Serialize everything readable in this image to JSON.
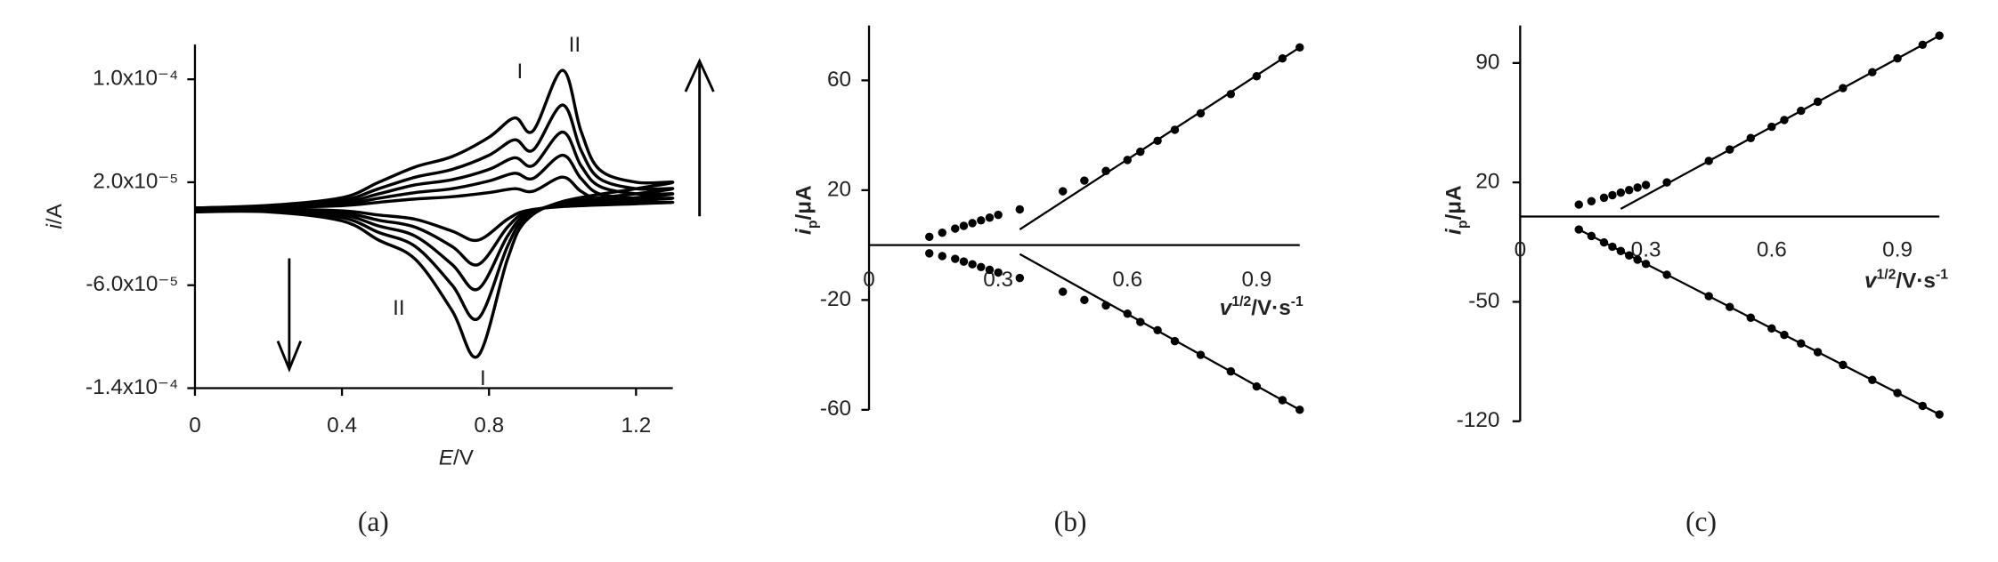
{
  "chart_data": [
    {
      "type": "line",
      "label": "(a)",
      "color": "#000000",
      "x_label": [
        "E",
        "/V"
      ],
      "y_label": [
        "i",
        "/A"
      ],
      "xlim": [
        0,
        1.3
      ],
      "ylim": [
        -0.00014,
        0.000127
      ],
      "xticks": [
        0,
        0.4,
        0.8,
        1.2
      ],
      "yticks": [
        {
          "value": 0.0001,
          "label": "1.0x10⁻⁴"
        },
        {
          "value": 2e-05,
          "label": "2.0x10⁻⁵"
        },
        {
          "value": -6e-05,
          "label": "-6.0x10⁻⁵"
        },
        {
          "value": -0.00014,
          "label": "-1.4x10⁻⁴"
        }
      ],
      "annotations": [
        "I",
        "II",
        "II",
        "I"
      ],
      "x": [
        0,
        0.2,
        0.4,
        0.5,
        0.6,
        0.7,
        0.8,
        0.87,
        0.92,
        1.0,
        1.05,
        1.1,
        1.2,
        1.3,
        1.2,
        1.0,
        0.9,
        0.85,
        0.77,
        0.7,
        0.6,
        0.5,
        0.4,
        0.2,
        0
      ],
      "series": [
        {
          "values": [
            0,
            2e-06,
            8e-06,
            2e-05,
            3.2e-05,
            4e-05,
            5.5e-05,
            7e-05,
            6e-05,
            0.000107,
            6e-05,
            3e-05,
            2e-05,
            2e-05,
            1.5e-05,
            5e-06,
            -1e-05,
            -4e-05,
            -0.000115,
            -8e-05,
            -4e-05,
            -2.5e-05,
            -1e-05,
            -3e-06,
            -3e-06
          ]
        },
        {
          "values": [
            0,
            1.5e-06,
            6e-06,
            1.5e-05,
            2.4e-05,
            3e-05,
            4.1e-05,
            5.3e-05,
            4.5e-05,
            8e-05,
            4.5e-05,
            2.3e-05,
            1.5e-05,
            1.5e-05,
            1.1e-05,
            4e-06,
            -7.5e-06,
            -3e-05,
            -8.6e-05,
            -6e-05,
            -3e-05,
            -1.9e-05,
            -7.5e-06,
            -2e-06,
            -2e-06
          ]
        },
        {
          "values": [
            0,
            1e-06,
            4.4e-06,
            1.1e-05,
            1.8e-05,
            2.2e-05,
            3e-05,
            3.9e-05,
            3.3e-05,
            5.9e-05,
            3.3e-05,
            1.7e-05,
            1.1e-05,
            1.1e-05,
            8e-06,
            3e-06,
            -5.5e-06,
            -2.2e-05,
            -6.3e-05,
            -4.4e-05,
            -2.2e-05,
            -1.4e-05,
            -5.5e-06,
            -2e-06,
            -2e-06
          ]
        },
        {
          "values": [
            0,
            8e-07,
            3e-06,
            7.6e-06,
            1.2e-05,
            1.5e-05,
            2.1e-05,
            2.7e-05,
            2.3e-05,
            4.1e-05,
            2.3e-05,
            1.1e-05,
            7.6e-06,
            7.6e-06,
            5.7e-06,
            1.9e-06,
            -3.8e-06,
            -1.5e-05,
            -4.4e-05,
            -3e-05,
            -1.5e-05,
            -9.5e-06,
            -3.8e-06,
            -1e-06,
            -1e-06
          ]
        },
        {
          "values": [
            0,
            4e-07,
            1.8e-06,
            4.4e-06,
            7e-06,
            8.8e-06,
            1.2e-05,
            1.5e-05,
            1.3e-05,
            2.4e-05,
            1.3e-05,
            6.6e-06,
            4.4e-06,
            4.4e-06,
            3.3e-06,
            1.1e-06,
            -2.2e-06,
            -8.8e-06,
            -2.5e-05,
            -1.8e-05,
            -8.8e-06,
            -5.5e-06,
            -2.2e-06,
            -7e-07,
            -7e-07
          ]
        }
      ]
    },
    {
      "type": "scatter",
      "label": "(b)",
      "color": "#000000",
      "x_label": [
        "v",
        "1/2",
        "/V·s",
        "-1"
      ],
      "y_label": [
        "i",
        "p",
        "/μA"
      ],
      "xlim": [
        0,
        1.0
      ],
      "ylim": [
        -60,
        80
      ],
      "xticks": [
        0,
        0.3,
        0.6,
        0.9
      ],
      "yticks": [
        60,
        20,
        -20,
        -60
      ],
      "x": [
        0.14,
        0.17,
        0.2,
        0.22,
        0.24,
        0.26,
        0.28,
        0.3,
        0.35,
        0.45,
        0.5,
        0.55,
        0.6,
        0.63,
        0.67,
        0.71,
        0.77,
        0.84,
        0.9,
        0.96,
        1.0
      ],
      "series": [
        {
          "values": [
            3,
            4.5,
            6,
            7,
            8,
            9,
            10,
            11,
            13,
            19.6,
            23.5,
            27,
            31,
            34,
            38,
            42,
            48,
            55,
            61.5,
            68,
            72
          ]
        },
        {
          "values": [
            -3,
            -4,
            -5,
            -6,
            -7,
            -8,
            -9,
            -10,
            -12,
            -17,
            -20,
            -22,
            -25,
            -28,
            -31,
            -35,
            -40,
            -46,
            -51.5,
            -56.5,
            -60
          ]
        }
      ],
      "fits": [
        {
          "x": [
            0.35,
            1.0
          ],
          "values": [
            5.7,
            72
          ]
        },
        {
          "x": [
            0.35,
            1.0
          ],
          "values": [
            -3.3,
            -60
          ]
        }
      ]
    },
    {
      "type": "scatter",
      "label": "(c)",
      "color": "#000000",
      "x_label": [
        "v",
        "1/2",
        "/V·s",
        "-1"
      ],
      "y_label": [
        "i",
        "p",
        "/μA"
      ],
      "xlim": [
        0,
        1.0
      ],
      "ylim": [
        -120,
        112
      ],
      "xticks": [
        0,
        0.3,
        0.6,
        0.9
      ],
      "yticks": [
        90,
        20,
        -50,
        -120
      ],
      "x": [
        0.14,
        0.17,
        0.2,
        0.22,
        0.24,
        0.26,
        0.28,
        0.3,
        0.35,
        0.45,
        0.5,
        0.55,
        0.6,
        0.63,
        0.67,
        0.71,
        0.77,
        0.84,
        0.9,
        0.96,
        1.0
      ],
      "series": [
        {
          "values": [
            7,
            9,
            11,
            12.5,
            14,
            15.5,
            17,
            18.5,
            20,
            32.6,
            39.3,
            46,
            52.6,
            56.6,
            62,
            67.3,
            75.3,
            84.6,
            92.7,
            100.7,
            106
          ]
        },
        {
          "values": [
            -7.6,
            -11.4,
            -15.2,
            -17.7,
            -20.2,
            -22.8,
            -25.3,
            -27.8,
            -34.1,
            -46.7,
            -53,
            -59.3,
            -65.6,
            -69.4,
            -74.4,
            -79.5,
            -87,
            -95.8,
            -103.4,
            -111,
            -116
          ]
        }
      ],
      "fits": [
        {
          "x": [
            0.24,
            1.0
          ],
          "values": [
            4.5,
            106
          ]
        },
        {
          "x": [
            0.14,
            1.0
          ],
          "values": [
            -7.6,
            -116
          ]
        }
      ]
    }
  ]
}
